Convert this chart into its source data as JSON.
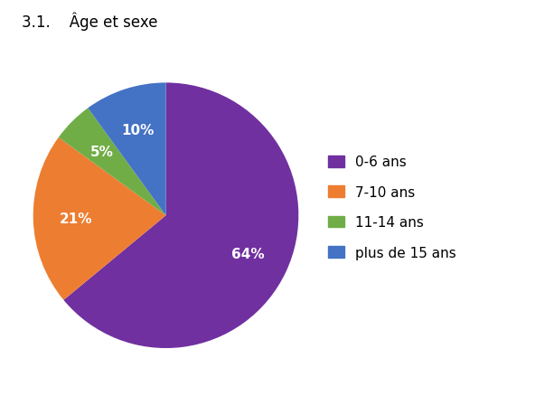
{
  "labels": [
    "0-6 ans",
    "7-10 ans",
    "11-14 ans",
    "plus de 15 ans"
  ],
  "values": [
    64,
    21,
    5,
    10
  ],
  "colors": [
    "#7030A0",
    "#ED7D31",
    "#70AD47",
    "#4472C4"
  ],
  "autopct_labels": [
    "64%",
    "21%",
    "5%",
    "10%"
  ],
  "header": "3.1.    Âge et sexe",
  "header_fontsize": 12,
  "legend_fontsize": 11,
  "autopct_fontsize": 11,
  "background_color": "#ffffff",
  "startangle": 90,
  "pctdistance": 0.68
}
